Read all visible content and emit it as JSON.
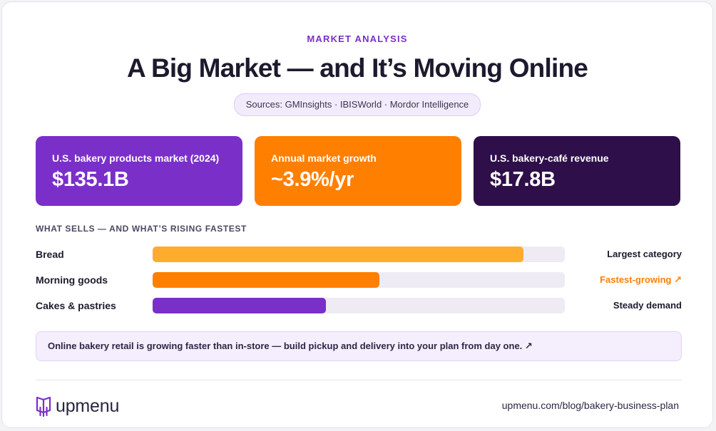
{
  "header": {
    "eyebrow": "MARKET ANALYSIS",
    "title": "A Big Market — and It’s Moving Online",
    "sources": "Sources: GMInsights · IBISWorld · Mordor Intelligence"
  },
  "stats": [
    {
      "label": "U.S. bakery products market (2024)",
      "value": "$135.1B",
      "color": "#7b2fc9"
    },
    {
      "label": "Annual market growth",
      "value": "~3.9%/yr",
      "color": "#ff7f00"
    },
    {
      "label": "U.S. bakery-café revenue",
      "value": "$17.8B",
      "color": "#2e0f4a"
    }
  ],
  "chart_data": {
    "type": "bar",
    "orientation": "horizontal",
    "title": "WHAT SELLS — AND WHAT’S RISING FASTEST",
    "categories": [
      "Bread",
      "Morning goods",
      "Cakes & pastries"
    ],
    "values": [
      0.9,
      0.55,
      0.42
    ],
    "notes": [
      "Largest category",
      "Fastest-growing ↗",
      "Steady demand"
    ],
    "colors": [
      "#ffab2e",
      "#ff7f00",
      "#7b2fc9"
    ],
    "note_colors": [
      "#1d1a2e",
      "#ff7f00",
      "#1d1a2e"
    ],
    "axis_range": [
      0,
      1
    ],
    "grid": false
  },
  "callout": {
    "text": "Online bakery retail is growing faster than in-store — build pickup and delivery into your plan from day one. ↗"
  },
  "footer": {
    "logo_text": "upmenu",
    "logo_icon": "upmenu-book-icon",
    "url": "upmenu.com/blog/bakery-business-plan"
  }
}
